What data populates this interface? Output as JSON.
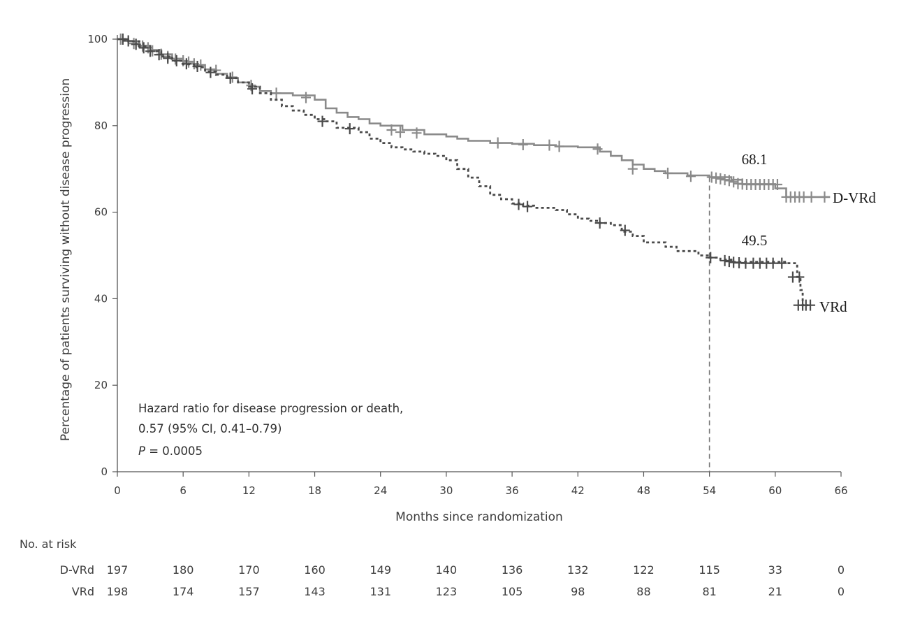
{
  "chart_data": {
    "type": "line",
    "subtype": "kaplan-meier",
    "xlabel": "Months since randomization",
    "ylabel": "Percentage of patients surviving without disease progression",
    "xlim": [
      0,
      66
    ],
    "ylim": [
      0,
      100
    ],
    "xticks": [
      0,
      6,
      12,
      18,
      24,
      30,
      36,
      42,
      48,
      54,
      60,
      66
    ],
    "yticks": [
      0,
      20,
      40,
      60,
      80,
      100
    ],
    "reference_line": {
      "x": 54,
      "style": "dashed"
    },
    "hazard_ratio": {
      "line1": "Hazard ratio for disease progression or death,",
      "line2": "0.57 (95% CI, 0.41–0.79)",
      "p_label": "P",
      "p_value": " = 0.0005"
    },
    "series": [
      {
        "name": "D-VRd",
        "color": "#8a8a8a",
        "line_style": "solid",
        "label_value": "68.1",
        "steps": [
          [
            0,
            100
          ],
          [
            1,
            99.5
          ],
          [
            2,
            98.5
          ],
          [
            3,
            97.5
          ],
          [
            4,
            96.5
          ],
          [
            5,
            95.5
          ],
          [
            6,
            94.8
          ],
          [
            7,
            94
          ],
          [
            8,
            93
          ],
          [
            9,
            92
          ],
          [
            10,
            91
          ],
          [
            11,
            90
          ],
          [
            12,
            89
          ],
          [
            13,
            88
          ],
          [
            14,
            87.5
          ],
          [
            16,
            87
          ],
          [
            18,
            86
          ],
          [
            19,
            84
          ],
          [
            20,
            83
          ],
          [
            21,
            82
          ],
          [
            22,
            81.5
          ],
          [
            23,
            80.5
          ],
          [
            24,
            80
          ],
          [
            26,
            79
          ],
          [
            28,
            78
          ],
          [
            30,
            77.5
          ],
          [
            31,
            77
          ],
          [
            32,
            76.5
          ],
          [
            34,
            76
          ],
          [
            36,
            75.8
          ],
          [
            38,
            75.5
          ],
          [
            40,
            75.2
          ],
          [
            42,
            75
          ],
          [
            44,
            74
          ],
          [
            45,
            73
          ],
          [
            46,
            72
          ],
          [
            47,
            71
          ],
          [
            48,
            70
          ],
          [
            49,
            69.5
          ],
          [
            50,
            69
          ],
          [
            52,
            68.5
          ],
          [
            54,
            68.1
          ],
          [
            56,
            67.5
          ],
          [
            57,
            66.5
          ],
          [
            60,
            65.5
          ],
          [
            61,
            63.5
          ],
          [
            65,
            63.5
          ]
        ],
        "censor_marks": [
          [
            0.3,
            100
          ],
          [
            1.5,
            99
          ],
          [
            2.3,
            98.4
          ],
          [
            2.8,
            98
          ],
          [
            3.2,
            97.3
          ],
          [
            4,
            96.5
          ],
          [
            4.6,
            96
          ],
          [
            5.3,
            95.4
          ],
          [
            6,
            95
          ],
          [
            6.5,
            94.7
          ],
          [
            7,
            94.3
          ],
          [
            7.6,
            94
          ],
          [
            9,
            92.8
          ],
          [
            10.5,
            91.2
          ],
          [
            12.2,
            89.3
          ],
          [
            14.5,
            87.5
          ],
          [
            17.2,
            86.5
          ],
          [
            25,
            79
          ],
          [
            25.8,
            78.5
          ],
          [
            27.3,
            78.3
          ],
          [
            34.7,
            76
          ],
          [
            37,
            75.6
          ],
          [
            39.4,
            75.5
          ],
          [
            40.3,
            75.2
          ],
          [
            43.8,
            74.6
          ],
          [
            47,
            70
          ],
          [
            50.2,
            69
          ],
          [
            52.3,
            68.3
          ],
          [
            54.2,
            68.1
          ],
          [
            54.6,
            67.9
          ],
          [
            55,
            67.7
          ],
          [
            55.4,
            67.5
          ],
          [
            55.8,
            67.3
          ],
          [
            56.2,
            67
          ],
          [
            56.6,
            66.6
          ],
          [
            57,
            66.5
          ],
          [
            57.4,
            66.4
          ],
          [
            57.8,
            66.4
          ],
          [
            58.2,
            66.4
          ],
          [
            58.6,
            66.4
          ],
          [
            59,
            66.4
          ],
          [
            59.4,
            66.4
          ],
          [
            59.8,
            66.4
          ],
          [
            60.2,
            66.4
          ],
          [
            61,
            63.5
          ],
          [
            61.4,
            63.5
          ],
          [
            61.8,
            63.5
          ],
          [
            62.2,
            63.5
          ],
          [
            62.6,
            63.5
          ],
          [
            63.3,
            63.5
          ],
          [
            64.5,
            63.5
          ]
        ]
      },
      {
        "name": "VRd",
        "color": "#4a4a4a",
        "line_style": "dotted",
        "label_value": "49.5",
        "steps": [
          [
            0,
            100
          ],
          [
            1,
            99.5
          ],
          [
            2,
            98.3
          ],
          [
            3,
            97.2
          ],
          [
            4,
            96
          ],
          [
            5,
            95
          ],
          [
            6,
            94.2
          ],
          [
            7,
            93.5
          ],
          [
            8,
            92.5
          ],
          [
            9,
            91.8
          ],
          [
            10,
            91
          ],
          [
            11,
            90
          ],
          [
            12,
            89
          ],
          [
            13,
            87.5
          ],
          [
            14,
            86
          ],
          [
            15,
            84.5
          ],
          [
            16,
            83.5
          ],
          [
            17,
            82.5
          ],
          [
            18,
            81.5
          ],
          [
            19,
            81
          ],
          [
            20,
            79.5
          ],
          [
            22,
            78.5
          ],
          [
            23,
            77
          ],
          [
            24,
            76
          ],
          [
            25,
            75
          ],
          [
            26,
            74.5
          ],
          [
            27,
            74
          ],
          [
            28,
            73.5
          ],
          [
            29,
            73
          ],
          [
            30,
            72
          ],
          [
            31,
            70
          ],
          [
            32,
            68
          ],
          [
            33,
            66
          ],
          [
            34,
            64
          ],
          [
            35,
            63
          ],
          [
            36,
            62
          ],
          [
            37,
            61.5
          ],
          [
            38,
            61
          ],
          [
            40,
            60.5
          ],
          [
            41,
            59.5
          ],
          [
            42,
            58.5
          ],
          [
            43,
            58
          ],
          [
            44,
            57.5
          ],
          [
            45,
            57
          ],
          [
            46,
            55.5
          ],
          [
            47,
            54.5
          ],
          [
            48,
            53
          ],
          [
            50,
            52
          ],
          [
            51,
            51
          ],
          [
            53,
            50
          ],
          [
            54,
            49.5
          ],
          [
            55,
            49
          ],
          [
            56,
            48.5
          ],
          [
            61,
            48.2
          ],
          [
            62,
            45
          ],
          [
            62.3,
            42
          ],
          [
            62.5,
            38.5
          ],
          [
            63,
            38.5
          ]
        ],
        "censor_marks": [
          [
            0.5,
            100
          ],
          [
            1,
            99.6
          ],
          [
            1.7,
            98.8
          ],
          [
            2.4,
            98
          ],
          [
            3,
            97.2
          ],
          [
            3.8,
            96.4
          ],
          [
            4.6,
            95.6
          ],
          [
            5.4,
            95
          ],
          [
            6.3,
            94.3
          ],
          [
            7.3,
            93.7
          ],
          [
            8.5,
            92.3
          ],
          [
            10.3,
            91
          ],
          [
            12.3,
            88.5
          ],
          [
            18.7,
            81
          ],
          [
            21.2,
            79.3
          ],
          [
            36.6,
            61.8
          ],
          [
            37.4,
            61.3
          ],
          [
            44,
            57.5
          ],
          [
            46.3,
            55.8
          ],
          [
            54.1,
            49.5
          ],
          [
            55.4,
            48.8
          ],
          [
            55.8,
            48.6
          ],
          [
            56.2,
            48.4
          ],
          [
            56.7,
            48.3
          ],
          [
            57.3,
            48.2
          ],
          [
            58,
            48.2
          ],
          [
            58.6,
            48.2
          ],
          [
            59.2,
            48.2
          ],
          [
            59.8,
            48.2
          ],
          [
            60.6,
            48.2
          ],
          [
            61.6,
            45
          ],
          [
            62.2,
            45
          ],
          [
            62.1,
            38.5
          ],
          [
            62.5,
            38.5
          ],
          [
            62.8,
            38.5
          ],
          [
            63.2,
            38.5
          ]
        ]
      }
    ],
    "risk_table": {
      "title": "No. at risk",
      "times": [
        0,
        6,
        12,
        18,
        24,
        30,
        36,
        42,
        48,
        54,
        60,
        66
      ],
      "rows": [
        {
          "label": "D-VRd",
          "values": [
            "197",
            "180",
            "170",
            "160",
            "149",
            "140",
            "136",
            "132",
            "122",
            "115",
            "33",
            "0"
          ]
        },
        {
          "label": "VRd",
          "values": [
            "198",
            "174",
            "157",
            "143",
            "131",
            "123",
            "105",
            "98",
            "88",
            "81",
            "21",
            "0"
          ]
        }
      ]
    }
  }
}
